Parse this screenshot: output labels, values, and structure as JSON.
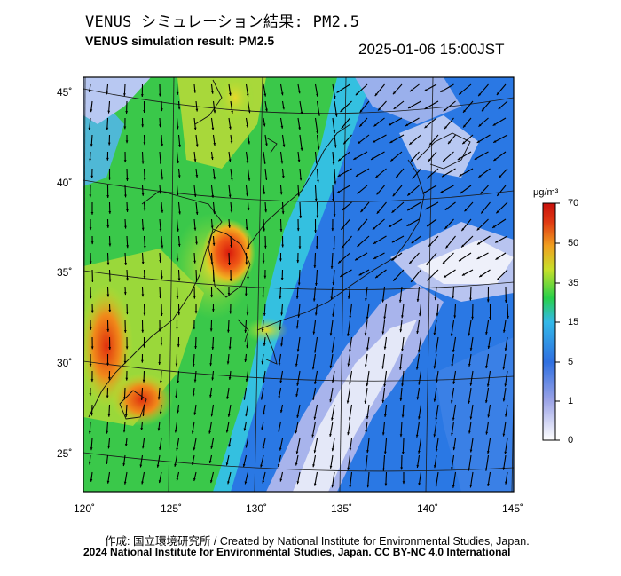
{
  "header": {
    "title_jp": "VENUS シミュレーション結果: PM2.5",
    "title_en": "VENUS simulation result: PM2.5",
    "timestamp": "2025-01-06 15:00JST"
  },
  "map": {
    "lat_labels": [
      "45˚",
      "40˚",
      "35˚",
      "30˚",
      "25˚"
    ],
    "lon_labels": [
      "120˚",
      "125˚",
      "130˚",
      "135˚",
      "140˚",
      "145˚"
    ],
    "wind_arrows": "shown"
  },
  "colorbar": {
    "unit": "μg/m³",
    "ticks": [
      "70",
      "50",
      "35",
      "15",
      "5",
      "1",
      "0"
    ],
    "colors": [
      "#ffffff",
      "#9aa2e6",
      "#2f6fe0",
      "#33b9e8",
      "#28d04a",
      "#c8e02a",
      "#f0a020",
      "#e03a12",
      "#c8100c"
    ]
  },
  "footer": {
    "credit": "作成: 国立環境研究所 / Created by National Institute for Environmental Studies, Japan.",
    "copyright": "2024 National Institute for Environmental Studies, Japan. CC BY-NC 4.0 International"
  }
}
